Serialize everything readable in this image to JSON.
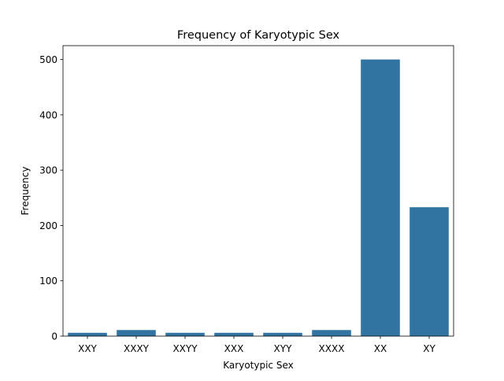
{
  "chart_data": {
    "type": "bar",
    "title": "Frequency of Karyotypic Sex",
    "xlabel": "Karyotypic Sex",
    "ylabel": "Frequency",
    "categories": [
      "XXY",
      "XXXY",
      "XXYY",
      "XXX",
      "XYY",
      "XXXX",
      "XX",
      "XY"
    ],
    "values": [
      6,
      11,
      6,
      6,
      6,
      11,
      500,
      233
    ],
    "ylim": [
      0,
      525
    ],
    "yticks": [
      0,
      100,
      200,
      300,
      400,
      500
    ],
    "grid": false,
    "legend": null,
    "bar_color": "#3274a1"
  }
}
